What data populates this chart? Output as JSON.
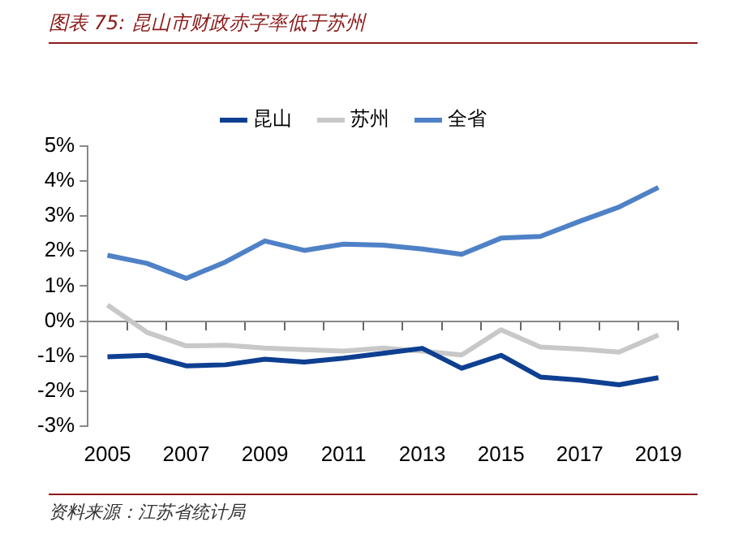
{
  "chart_data": {
    "type": "line",
    "title": "图表 75: 昆山市财政赤字率低于苏州",
    "categories": [
      "2005",
      null,
      "2007",
      null,
      "2009",
      null,
      "2011",
      null,
      "2013",
      null,
      "2015",
      null,
      "2017",
      null,
      "2019"
    ],
    "series": [
      {
        "name": "昆山",
        "color": "#0e3f91",
        "values": [
          -1.02,
          -0.98,
          -1.28,
          -1.25,
          -1.09,
          -1.17,
          -1.06,
          -0.92,
          -0.78,
          -1.35,
          -0.98,
          -1.6,
          -1.69,
          -1.82,
          -1.62
        ]
      },
      {
        "name": "苏州",
        "color": "#c8c8c8",
        "values": [
          0.46,
          -0.32,
          -0.71,
          -0.69,
          -0.77,
          -0.82,
          -0.86,
          -0.77,
          -0.86,
          -0.97,
          -0.25,
          -0.74,
          -0.8,
          -0.89,
          -0.4
        ]
      },
      {
        "name": "全省",
        "color": "#4f81c7",
        "values": [
          1.88,
          1.65,
          1.22,
          1.69,
          2.29,
          2.02,
          2.2,
          2.17,
          2.06,
          1.91,
          2.37,
          2.42,
          2.85,
          3.26,
          3.82
        ]
      }
    ],
    "ylim": [
      -3,
      5
    ],
    "yticks": [
      {
        "value": -3,
        "label": "-3%"
      },
      {
        "value": -2,
        "label": "-2%"
      },
      {
        "value": -1,
        "label": "-1%"
      },
      {
        "value": 0,
        "label": "0%"
      },
      {
        "value": 1,
        "label": "1%"
      },
      {
        "value": 2,
        "label": "2%"
      },
      {
        "value": 3,
        "label": "3%"
      },
      {
        "value": 4,
        "label": "4%"
      },
      {
        "value": 5,
        "label": "5%"
      }
    ],
    "legend": "top",
    "marker": "none",
    "annotations": [
      "资料来源：江苏省统计局"
    ]
  }
}
